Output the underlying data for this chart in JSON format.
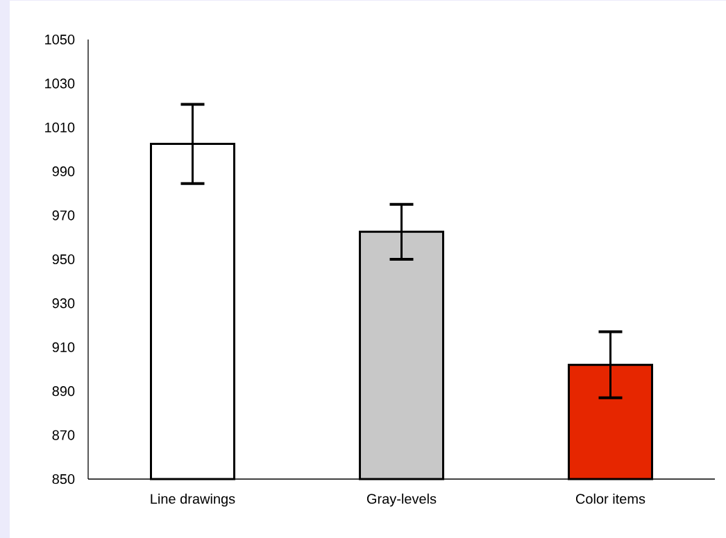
{
  "chart_data": {
    "type": "bar",
    "categories": [
      "Line drawings",
      "Gray-levels",
      "Color items"
    ],
    "values": [
      1002.5,
      962.5,
      902
    ],
    "errors": [
      18,
      12.5,
      15
    ],
    "colors": [
      "#ffffff",
      "#c8c8c8",
      "#e62600"
    ],
    "ylim": [
      850,
      1050
    ],
    "yticks": [
      850,
      870,
      890,
      910,
      930,
      950,
      970,
      990,
      1010,
      1030,
      1050
    ]
  }
}
